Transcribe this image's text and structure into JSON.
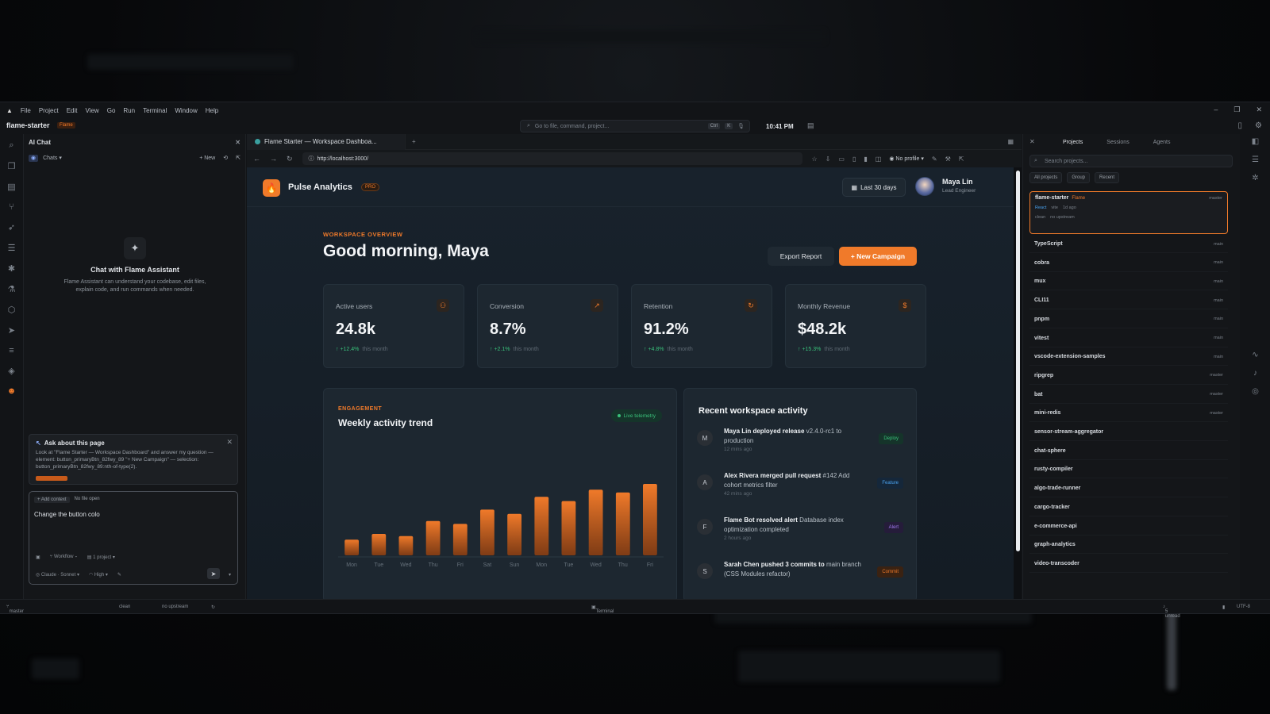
{
  "menubar": {
    "items": [
      "File",
      "Project",
      "Edit",
      "View",
      "Go",
      "Run",
      "Terminal",
      "Window",
      "Help"
    ]
  },
  "titlebar": {
    "project": "flame-starter",
    "badge": "Flame",
    "command_placeholder": "Go to file, command, project...",
    "kbd1": "Ctrl",
    "kbd2": "K",
    "time": "10:41 PM"
  },
  "chat": {
    "title": "AI Chat",
    "tab": "Chats",
    "new_label": "+ New",
    "empty_title": "Chat with Flame Assistant",
    "empty_desc": "Flame Assistant can understand your codebase, edit files, explain code, and run commands when needed.",
    "ask_title": "Ask about this page",
    "ask_text": "Look at \"Flame Starter — Workspace Dashboard\" and answer my question — element: button_primaryBtn_82fwy_89 \"+ New Campaign\" — selection: button_primaryBtn_82fwy_89:nth-of-type(2).",
    "add_context": "+ Add context",
    "no_file": "No file open",
    "input_value": "Change the button colo",
    "workflow": "Workflow",
    "project_count": "1 project",
    "model": "Claude · Sonnet",
    "effort": "High"
  },
  "browser": {
    "tab_title": "Flame Starter — Workspace Dashboa...",
    "url": "http://localhost:3000/",
    "profile": "No profile"
  },
  "app": {
    "brand": "Pulse Analytics",
    "pro": "PRO",
    "range": "Last 30 days",
    "user_name": "Maya Lin",
    "user_role": "Lead Engineer",
    "overview_label": "WORKSPACE OVERVIEW",
    "greeting": "Good morning, Maya",
    "export_label": "Export Report",
    "new_label": "+ New Campaign",
    "kpis": [
      {
        "label": "Active users",
        "value": "24.8k",
        "change": "↑ +12.4%",
        "suffix": "this month"
      },
      {
        "label": "Conversion",
        "value": "8.7%",
        "change": "↑ +2.1%",
        "suffix": "this month"
      },
      {
        "label": "Retention",
        "value": "91.2%",
        "change": "↑ +4.8%",
        "suffix": "this month"
      },
      {
        "label": "Monthly Revenue",
        "value": "$48.2k",
        "change": "↑ +15.3%",
        "suffix": "this month"
      }
    ],
    "engagement_label": "ENGAGEMENT",
    "engagement_title": "Weekly activity trend",
    "live_label": "Live telemetry",
    "activity_title": "Recent workspace activity",
    "activity": [
      {
        "initial": "M",
        "who": "Maya Lin",
        "action": "deployed release",
        "detail": "v2.4.0-rc1 to production",
        "time": "12 mins ago",
        "tag": "Deploy",
        "tag_color": "#39c07a",
        "tag_bg": "#15342a"
      },
      {
        "initial": "A",
        "who": "Alex Rivera",
        "action": "merged pull request",
        "detail": "#142 Add cohort metrics filter",
        "time": "42 mins ago",
        "tag": "Feature",
        "tag_color": "#4aa3f0",
        "tag_bg": "#15273a"
      },
      {
        "initial": "F",
        "who": "Flame Bot",
        "action": "resolved alert",
        "detail": "Database index optimization completed",
        "time": "2 hours ago",
        "tag": "Alert",
        "tag_color": "#a07af0",
        "tag_bg": "#251c3a"
      },
      {
        "initial": "S",
        "who": "Sarah Chen",
        "action": "pushed 3 commits to",
        "detail": "main branch (CSS Modules refactor)",
        "time": "",
        "tag": "Commit",
        "tag_color": "#f07a2a",
        "tag_bg": "#3a2212"
      }
    ]
  },
  "chart_data": {
    "type": "bar",
    "categories": [
      "Mon",
      "Tue",
      "Wed",
      "Thu",
      "Fri",
      "Sat",
      "Sun",
      "Mon",
      "Tue",
      "Wed",
      "Thu",
      "Fri"
    ],
    "values": [
      22,
      30,
      27,
      48,
      44,
      64,
      58,
      82,
      76,
      92,
      88,
      100
    ],
    "ylim": [
      0,
      100
    ],
    "bar_color": "#f07a2a"
  },
  "projects": {
    "tabs": [
      "Projects",
      "Sessions",
      "Agents"
    ],
    "search_placeholder": "Search projects...",
    "filters": [
      "All projects",
      "Group",
      "Recent"
    ],
    "active": {
      "name": "flame-starter",
      "badge": "Flame",
      "branch": "master",
      "react": "React",
      "vite": "vite",
      "age": "1d ago",
      "clean": "clean",
      "upstream": "no upstream"
    },
    "items": [
      {
        "name": "TypeScript",
        "branch": "main"
      },
      {
        "name": "cobra",
        "branch": "main"
      },
      {
        "name": "mux",
        "branch": "main"
      },
      {
        "name": "CLI11",
        "branch": "main"
      },
      {
        "name": "pnpm",
        "branch": "main"
      },
      {
        "name": "vitest",
        "branch": "main"
      },
      {
        "name": "vscode-extension-samples",
        "branch": "main"
      },
      {
        "name": "ripgrep",
        "branch": "master"
      },
      {
        "name": "bat",
        "branch": "master"
      },
      {
        "name": "mini-redis",
        "branch": "master"
      },
      {
        "name": "sensor-stream-aggregator",
        "branch": ""
      },
      {
        "name": "chat-sphere",
        "branch": ""
      },
      {
        "name": "rusty-compiler",
        "branch": ""
      },
      {
        "name": "algo-trade-runner",
        "branch": ""
      },
      {
        "name": "cargo-tracker",
        "branch": ""
      },
      {
        "name": "e-commerce-api",
        "branch": ""
      },
      {
        "name": "graph-analytics",
        "branch": ""
      },
      {
        "name": "video-transcoder",
        "branch": ""
      }
    ]
  },
  "status": {
    "branch": "master",
    "clean": "clean",
    "upstream": "no upstream",
    "terminal": "Terminal",
    "unread": "5 unread",
    "encoding": "UTF-8"
  }
}
